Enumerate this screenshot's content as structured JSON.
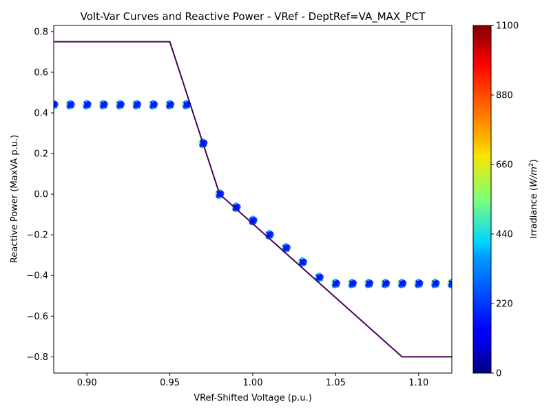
{
  "chart_data": {
    "type": "scatter",
    "title": "Volt-Var Curves and Reactive Power - VRef - DeptRef=VA_MAX_PCT",
    "xlabel": "VRef-Shifted Voltage (p.u.)",
    "ylabel": "Reactive Power (MaxVA p.u.)",
    "xlim": [
      0.88,
      1.12
    ],
    "ylim": [
      -0.88,
      0.83
    ],
    "xticks": [
      0.9,
      0.95,
      1.0,
      1.05,
      1.1
    ],
    "xtick_labels": [
      "0.90",
      "0.95",
      "1.00",
      "1.05",
      "1.10"
    ],
    "yticks": [
      -0.8,
      -0.6,
      -0.4,
      -0.2,
      0.0,
      0.2,
      0.4,
      0.6,
      0.8
    ],
    "ytick_labels": [
      "−0.8",
      "−0.6",
      "−0.4",
      "−0.2",
      "0.0",
      "0.2",
      "0.4",
      "0.6",
      "0.8"
    ],
    "grid": false,
    "curve": {
      "color": "#440154",
      "x": [
        0.88,
        0.95,
        0.98,
        1.09,
        1.12
      ],
      "y": [
        0.75,
        0.75,
        0.0,
        -0.8,
        -0.8
      ]
    },
    "measured": {
      "marker": "x",
      "x": [
        0.88,
        0.89,
        0.9,
        0.91,
        0.92,
        0.93,
        0.94,
        0.95,
        0.96,
        0.97,
        0.98,
        0.99,
        1.0,
        1.01,
        1.02,
        1.03,
        1.04,
        1.05,
        1.06,
        1.07,
        1.08,
        1.09,
        1.1,
        1.11,
        1.12
      ],
      "y": [
        0.44,
        0.44,
        0.44,
        0.44,
        0.44,
        0.44,
        0.44,
        0.44,
        0.44,
        0.25,
        0.0,
        -0.065,
        -0.13,
        -0.2,
        -0.265,
        -0.335,
        -0.41,
        -0.44,
        -0.44,
        -0.44,
        -0.44,
        -0.44,
        -0.44,
        -0.44,
        -0.44
      ],
      "irradiance_range": [
        180,
        560
      ]
    },
    "colorbar": {
      "label": "Irradiance (W/m²)",
      "label_main": "Irradiance (",
      "label_var": "W/m",
      "label_sup": "2",
      "label_end": ")",
      "range": [
        0,
        1100
      ],
      "ticks": [
        0,
        220,
        440,
        660,
        880,
        1100
      ],
      "tick_labels": [
        "0",
        "220",
        "440",
        "660",
        "880",
        "1100"
      ],
      "colormap": "jet"
    }
  }
}
